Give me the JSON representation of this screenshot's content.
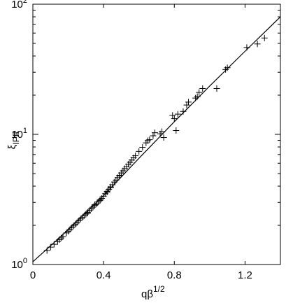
{
  "chart_data": {
    "type": "scatter",
    "title": "",
    "xlabel": {
      "base": "qβ",
      "sup": "1/2"
    },
    "ylabel": {
      "base": "ξ",
      "sub": "IPR"
    },
    "xlim": [
      0,
      1.4
    ],
    "ylim": [
      1,
      100
    ],
    "yscale": "log",
    "grid": false,
    "legend": "none",
    "x_ticks": [
      "0",
      "0.4",
      "0.8",
      "1.2"
    ],
    "x_tick_values": [
      0,
      0.4,
      0.8,
      1.2
    ],
    "y_ticks": [
      {
        "base": "10",
        "exp": "0",
        "value": 1
      },
      {
        "base": "10",
        "exp": "1",
        "value": 10
      },
      {
        "base": "10",
        "exp": "2",
        "value": 100
      }
    ],
    "series": [
      {
        "marker": "+",
        "points": [
          [
            0.08,
            1.28
          ],
          [
            0.1,
            1.36
          ],
          [
            0.12,
            1.43
          ],
          [
            0.14,
            1.5
          ],
          [
            0.15,
            1.55
          ],
          [
            0.16,
            1.6
          ],
          [
            0.17,
            1.64
          ],
          [
            0.19,
            1.75
          ],
          [
            0.2,
            1.8
          ],
          [
            0.21,
            1.86
          ],
          [
            0.22,
            1.92
          ],
          [
            0.23,
            1.98
          ],
          [
            0.24,
            2.04
          ],
          [
            0.25,
            2.1
          ],
          [
            0.26,
            2.17
          ],
          [
            0.27,
            2.24
          ],
          [
            0.28,
            2.3
          ],
          [
            0.29,
            2.37
          ],
          [
            0.3,
            2.44
          ],
          [
            0.31,
            2.52
          ],
          [
            0.32,
            2.6
          ],
          [
            0.33,
            2.68
          ],
          [
            0.34,
            2.76
          ],
          [
            0.35,
            2.84
          ],
          [
            0.36,
            2.93
          ],
          [
            0.37,
            3.02
          ],
          [
            0.38,
            3.1
          ],
          [
            0.39,
            3.22
          ],
          [
            0.4,
            3.35
          ],
          [
            0.41,
            3.5
          ],
          [
            0.42,
            3.65
          ],
          [
            0.43,
            3.78
          ],
          [
            0.44,
            3.95
          ],
          [
            0.45,
            4.1
          ],
          [
            0.46,
            4.3
          ],
          [
            0.47,
            4.45
          ],
          [
            0.48,
            4.65
          ],
          [
            0.49,
            4.85
          ],
          [
            0.5,
            5.05
          ],
          [
            0.51,
            5.25
          ],
          [
            0.52,
            5.45
          ],
          [
            0.53,
            5.65
          ],
          [
            0.54,
            5.9
          ],
          [
            0.55,
            6.1
          ],
          [
            0.56,
            6.35
          ],
          [
            0.57,
            6.6
          ],
          [
            0.58,
            6.85
          ],
          [
            0.6,
            7.4
          ],
          [
            0.62,
            7.95
          ],
          [
            0.64,
            8.6
          ],
          [
            0.65,
            8.95
          ],
          [
            0.66,
            9.1
          ],
          [
            0.68,
            9.75
          ],
          [
            0.69,
            10.3
          ],
          [
            0.72,
            10.1
          ],
          [
            0.73,
            10.5
          ],
          [
            0.74,
            9.45
          ],
          [
            0.79,
            14.0
          ],
          [
            0.8,
            13.2
          ],
          [
            0.81,
            10.7
          ],
          [
            0.82,
            14.3
          ],
          [
            0.85,
            15.0
          ],
          [
            0.87,
            16.8
          ],
          [
            0.88,
            17.7
          ],
          [
            0.92,
            19.0
          ],
          [
            0.94,
            21.0
          ],
          [
            0.96,
            22.5
          ],
          [
            1.04,
            22.5
          ],
          [
            1.09,
            31.5
          ],
          [
            1.1,
            32.5
          ],
          [
            1.21,
            46.5
          ],
          [
            1.27,
            49.5
          ],
          [
            1.31,
            55.0
          ],
          [
            0.31,
            2.48
          ],
          [
            0.35,
            2.88
          ],
          [
            0.38,
            3.15
          ],
          [
            0.42,
            3.6
          ],
          [
            0.44,
            3.9
          ],
          [
            0.49,
            4.8
          ],
          [
            0.93,
            19.5
          ]
        ]
      },
      {
        "name": "",
        "style": "line",
        "points": [
          [
            0.0,
            1.05
          ],
          [
            0.2,
            1.85
          ],
          [
            0.4,
            3.38
          ],
          [
            0.6,
            6.55
          ],
          [
            0.8,
            12.5
          ],
          [
            1.0,
            23.5
          ],
          [
            1.2,
            43.5
          ],
          [
            1.4,
            80.0
          ]
        ]
      }
    ]
  },
  "colors": {
    "background": "#ffffff",
    "ink": "#000000"
  }
}
